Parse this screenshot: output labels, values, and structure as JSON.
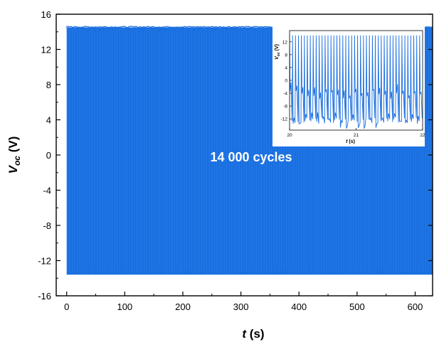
{
  "chart_data": {
    "type": "line",
    "xlabel": {
      "var": "t",
      "unit": " (s)"
    },
    "ylabel": {
      "var": "V",
      "sub": "oc",
      "unit": " (V)"
    },
    "x_ticks": [
      "0",
      "100",
      "200",
      "300",
      "400",
      "500",
      "600"
    ],
    "y_ticks": [
      "16",
      "12",
      "8",
      "4",
      "0",
      "-4",
      "-8",
      "-12",
      "-16"
    ],
    "xlim": [
      -18,
      630
    ],
    "ylim": [
      -16,
      16
    ],
    "grid": false,
    "series": [
      {
        "name": "",
        "color": "#1a6fe0",
        "t_start": 0,
        "t_end": 630,
        "v_max": 14.5,
        "v_min": -13.6
      }
    ],
    "annotation": "14 000 cycles",
    "inset": {
      "type": "line",
      "xlabel": {
        "var": "t",
        "unit": " (s)"
      },
      "ylabel": {
        "var": "V",
        "sub": "oc",
        "unit": " (V)"
      },
      "x_ticks": [
        "20",
        "21",
        "22"
      ],
      "y_ticks": [
        "12",
        "8",
        "4",
        "0",
        "-4",
        "-8",
        "-12"
      ],
      "xlim": [
        20,
        22
      ],
      "ylim": [
        -15.5,
        15.5
      ],
      "color": "#1a6fe0",
      "cycles_per_second": 22.5,
      "v_max": 14.0,
      "v_min": -13.5,
      "trough_levels": [
        -4.5,
        -13.5
      ]
    }
  }
}
